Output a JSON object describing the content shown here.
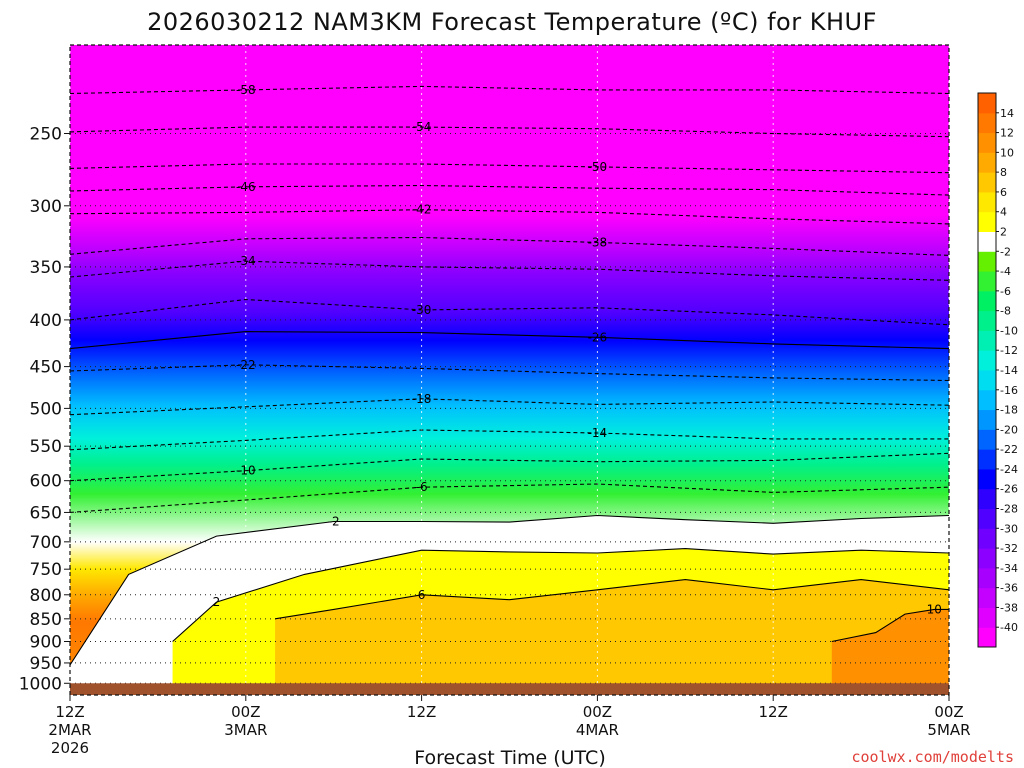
{
  "chart_data": {
    "type": "heatmap",
    "title": "2026030212 NAM3KM Forecast Temperature (ºC) for KHUF",
    "xlabel": "Forecast Time (UTC)",
    "ylabel": "",
    "credit": "coolwx.com/modelts",
    "x_ticks": [
      {
        "hour": 0,
        "lines": [
          "12Z",
          "2MAR",
          "2026"
        ]
      },
      {
        "hour": 12,
        "lines": [
          "00Z",
          "3MAR"
        ]
      },
      {
        "hour": 24,
        "lines": [
          "12Z"
        ]
      },
      {
        "hour": 36,
        "lines": [
          "00Z",
          "4MAR"
        ]
      },
      {
        "hour": 48,
        "lines": [
          "12Z"
        ]
      },
      {
        "hour": 60,
        "lines": [
          "00Z",
          "5MAR"
        ]
      }
    ],
    "xlim": [
      0,
      60
    ],
    "y_ticks": [
      250,
      300,
      350,
      400,
      450,
      500,
      550,
      600,
      650,
      700,
      750,
      800,
      850,
      900,
      950,
      1000
    ],
    "ylim_hPa": [
      200,
      1030
    ],
    "y_scale": "log (pressure)",
    "surface_pressure_hPa": 1000,
    "colorbar": {
      "colors": [
        "#ff00ff",
        "#e000ff",
        "#c400ff",
        "#a800ff",
        "#8c00ff",
        "#7000ff",
        "#5000ff",
        "#3000ff",
        "#0000ff",
        "#0030ff",
        "#0064ff",
        "#0096ff",
        "#00beff",
        "#00dcf0",
        "#00f0dc",
        "#00f0b4",
        "#00f08c",
        "#00f064",
        "#32f032",
        "#64f000",
        "#ffffff",
        "#ffff00",
        "#ffe800",
        "#ffc800",
        "#ffaa00",
        "#ff9000",
        "#ff7800",
        "#ff6000"
      ],
      "tick_labels": [
        "-40",
        "-38",
        "-36",
        "-34",
        "-32",
        "-30",
        "-28",
        "-26",
        "-24",
        "-22",
        "-20",
        "-18",
        "-16",
        "-14",
        "-12",
        "-10",
        "-8",
        "-6",
        "-4",
        "-2",
        "2",
        "4",
        "6",
        "8",
        "10",
        "12",
        "14"
      ]
    },
    "isotherms": [
      {
        "value": -58,
        "label": "-58",
        "style": "dashed",
        "points": [
          [
            0,
            226
          ],
          [
            12,
            224
          ],
          [
            24,
            222
          ],
          [
            36,
            224
          ],
          [
            48,
            224
          ],
          [
            60,
            226
          ]
        ]
      },
      {
        "value": -54,
        "label": "-54",
        "style": "dashed",
        "points": [
          [
            0,
            249
          ],
          [
            12,
            246
          ],
          [
            24,
            246
          ],
          [
            36,
            247
          ],
          [
            48,
            250
          ],
          [
            60,
            252
          ]
        ]
      },
      {
        "value": -50,
        "label": "-50",
        "style": "dashed",
        "points": [
          [
            0,
            273
          ],
          [
            12,
            270
          ],
          [
            24,
            270
          ],
          [
            36,
            272
          ],
          [
            48,
            274
          ],
          [
            60,
            276
          ]
        ]
      },
      {
        "value": -46,
        "label": "-46",
        "style": "dashed",
        "points": [
          [
            0,
            289
          ],
          [
            12,
            286
          ],
          [
            24,
            285
          ],
          [
            36,
            287
          ],
          [
            48,
            288
          ],
          [
            60,
            292
          ]
        ]
      },
      {
        "value": -42,
        "label": "-42",
        "style": "dashed",
        "points": [
          [
            0,
            306
          ],
          [
            12,
            305
          ],
          [
            24,
            303
          ],
          [
            36,
            305
          ],
          [
            48,
            310
          ],
          [
            60,
            314
          ]
        ]
      },
      {
        "value": -38,
        "label": "-38",
        "style": "dashed",
        "points": [
          [
            0,
            339
          ],
          [
            12,
            326
          ],
          [
            24,
            325
          ],
          [
            36,
            329
          ],
          [
            48,
            334
          ],
          [
            60,
            340
          ]
        ]
      },
      {
        "value": -34,
        "label": "-34",
        "style": "dashed",
        "points": [
          [
            0,
            359
          ],
          [
            12,
            345
          ],
          [
            24,
            350
          ],
          [
            36,
            352
          ],
          [
            48,
            358
          ],
          [
            60,
            362
          ]
        ]
      },
      {
        "value": -30,
        "label": "-30",
        "style": "dashed",
        "points": [
          [
            0,
            400
          ],
          [
            12,
            380
          ],
          [
            24,
            390
          ],
          [
            36,
            388
          ],
          [
            48,
            395
          ],
          [
            60,
            405
          ]
        ]
      },
      {
        "value": -26,
        "label": "-26",
        "style": "solid",
        "points": [
          [
            0,
            430
          ],
          [
            12,
            412
          ],
          [
            24,
            413
          ],
          [
            36,
            418
          ],
          [
            48,
            425
          ],
          [
            60,
            430
          ]
        ]
      },
      {
        "value": -22,
        "label": "-22",
        "style": "dashed",
        "points": [
          [
            0,
            455
          ],
          [
            12,
            448
          ],
          [
            24,
            452
          ],
          [
            36,
            458
          ],
          [
            48,
            463
          ],
          [
            60,
            466
          ]
        ]
      },
      {
        "value": -18,
        "label": "-18",
        "style": "dashed",
        "points": [
          [
            0,
            508
          ],
          [
            12,
            498
          ],
          [
            24,
            488
          ],
          [
            36,
            495
          ],
          [
            48,
            492
          ],
          [
            60,
            496
          ]
        ]
      },
      {
        "value": -14,
        "label": "-14",
        "style": "dashed",
        "points": [
          [
            0,
            555
          ],
          [
            12,
            542
          ],
          [
            24,
            528
          ],
          [
            36,
            532
          ],
          [
            48,
            540
          ],
          [
            60,
            540
          ]
        ]
      },
      {
        "value": -10,
        "label": "-10",
        "style": "dashed",
        "points": [
          [
            0,
            600
          ],
          [
            12,
            585
          ],
          [
            24,
            568
          ],
          [
            36,
            572
          ],
          [
            48,
            570
          ],
          [
            60,
            560
          ]
        ]
      },
      {
        "value": -6,
        "label": "-6",
        "style": "dashed",
        "points": [
          [
            0,
            650
          ],
          [
            12,
            630
          ],
          [
            24,
            610
          ],
          [
            36,
            605
          ],
          [
            48,
            618
          ],
          [
            60,
            610
          ]
        ]
      },
      {
        "value": -2,
        "label": "-2",
        "style": "solid",
        "points": [
          [
            0,
            955
          ],
          [
            4,
            760
          ],
          [
            10,
            690
          ],
          [
            18,
            665
          ],
          [
            24,
            665
          ],
          [
            30,
            666
          ],
          [
            36,
            655
          ],
          [
            42,
            662
          ],
          [
            48,
            668
          ],
          [
            54,
            660
          ],
          [
            60,
            655
          ]
        ]
      },
      {
        "value": 2,
        "label": "2",
        "style": "solid",
        "points": [
          [
            7,
            900
          ],
          [
            10,
            815
          ],
          [
            16,
            760
          ],
          [
            24,
            715
          ],
          [
            30,
            718
          ],
          [
            36,
            720
          ],
          [
            42,
            712
          ],
          [
            48,
            722
          ],
          [
            54,
            715
          ],
          [
            60,
            720
          ]
        ]
      },
      {
        "value": 6,
        "label": "6",
        "style": "solid",
        "points": [
          [
            14,
            850
          ],
          [
            18,
            830
          ],
          [
            24,
            800
          ],
          [
            30,
            810
          ],
          [
            36,
            790
          ],
          [
            42,
            770
          ],
          [
            48,
            790
          ],
          [
            54,
            770
          ],
          [
            60,
            790
          ]
        ]
      },
      {
        "value": 10,
        "label": "10",
        "style": "solid",
        "points": [
          [
            52,
            900
          ],
          [
            55,
            880
          ],
          [
            57,
            840
          ],
          [
            59,
            830
          ],
          [
            60,
            830
          ]
        ]
      }
    ]
  }
}
